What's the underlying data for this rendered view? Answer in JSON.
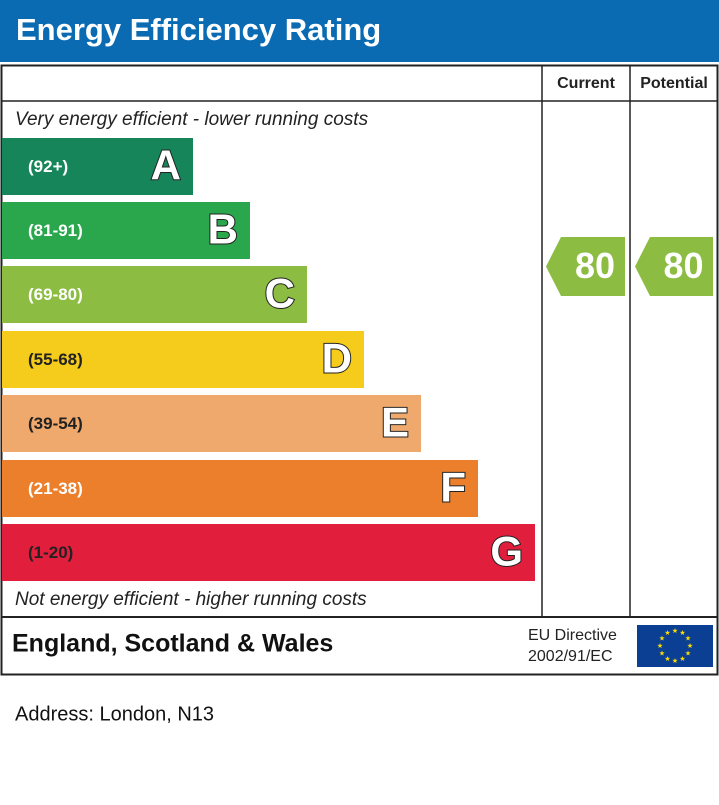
{
  "header": {
    "title": "Energy Efficiency Rating"
  },
  "columns": {
    "current": "Current",
    "potential": "Potential"
  },
  "top_note": "Very energy efficient - lower running costs",
  "bottom_note": "Not energy efficient - higher running costs",
  "bands": [
    {
      "range": "(92+)",
      "letter": "A",
      "color": "#17855a"
    },
    {
      "range": "(81-91)",
      "letter": "B",
      "color": "#2aa64d"
    },
    {
      "range": "(69-80)",
      "letter": "C",
      "color": "#8cbd42"
    },
    {
      "range": "(55-68)",
      "letter": "D",
      "color": "#f5cc1c"
    },
    {
      "range": "(39-54)",
      "letter": "E",
      "color": "#f0a96c"
    },
    {
      "range": "(21-38)",
      "letter": "F",
      "color": "#eb7f2b"
    },
    {
      "range": "(1-20)",
      "letter": "G",
      "color": "#e21e3d"
    }
  ],
  "current": {
    "value": 80,
    "color": "#8cbd42"
  },
  "potential": {
    "value": 80,
    "color": "#8cbd42"
  },
  "footer": {
    "region": "England, Scotland & Wales",
    "directive": [
      "EU Directive",
      "2002/91/EC"
    ]
  },
  "address": "Address: London, N13"
}
